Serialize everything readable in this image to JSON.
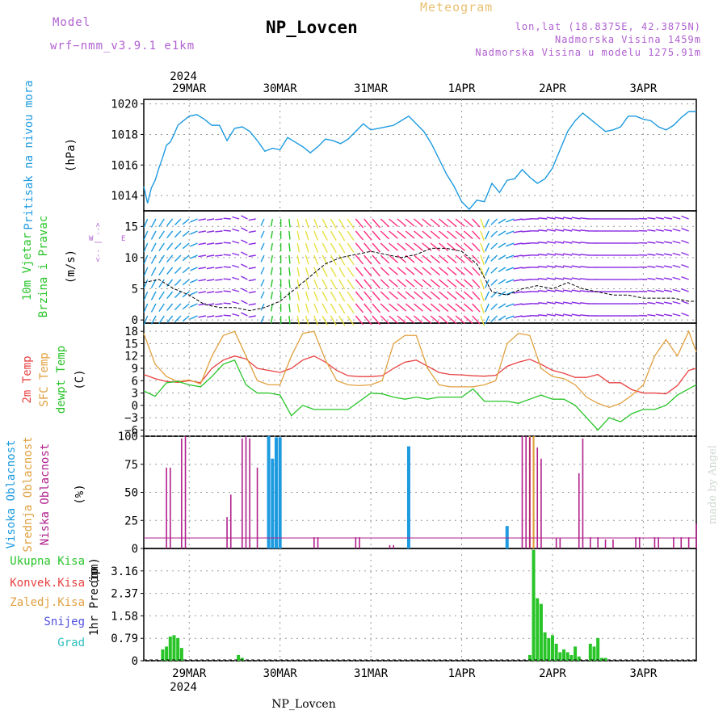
{
  "header": {
    "model_label": "Model",
    "model_name": "wrf−nmm_v3.9.1  e1km",
    "station": "NP_Lovcen",
    "product": "Meteogram",
    "lonlat": "lon,lat (18.8375E, 42.3875N)",
    "elevation": "Nadmorska Visina 1459m",
    "model_elevation": "Nadmorska Visina u modelu 1275.91m",
    "watermark": "made by Angel"
  },
  "time_axis": {
    "year": "2024",
    "days": [
      "29MAR",
      "30MAR",
      "31MAR",
      "1APR",
      "2APR",
      "3APR"
    ],
    "footer": "NP_Lovcen"
  },
  "colors": {
    "pressure": "#1e9be0",
    "wind": "#28c428",
    "temp2m": "#e84040",
    "sfc": "#e0a040",
    "dew": "#28c428",
    "high_cloud": "#1e9be0",
    "mid_cloud": "#e0a040",
    "low_cloud": "#b0208c",
    "precip": "#28c428",
    "snow": "#5050e0",
    "grad": "#30c0c0"
  },
  "chart_data": [
    {
      "type": "line",
      "panel": "pressure",
      "ylabel": "Pritisak na nivou mora",
      "unit": "(hPa)",
      "ylim": [
        1013,
        1020.3
      ],
      "yticks": [
        1014,
        1016,
        1018,
        1020
      ],
      "x_hours": [
        0,
        1,
        2,
        3,
        4,
        5,
        6,
        7,
        8,
        9,
        10,
        12,
        14,
        16,
        18,
        20,
        22,
        24,
        26,
        28,
        30,
        32,
        34,
        36,
        38,
        40,
        42,
        44,
        46,
        48,
        50,
        52,
        54,
        56,
        58,
        60,
        62,
        64,
        66,
        68,
        70,
        72,
        74,
        76,
        78,
        80,
        82,
        84,
        86,
        88,
        90,
        92,
        94,
        96,
        98,
        100,
        102,
        104,
        106,
        108,
        110,
        112,
        114,
        116,
        118,
        120,
        122,
        124,
        126,
        128,
        130,
        132,
        134,
        136,
        138,
        140,
        142,
        144,
        146
      ],
      "values": [
        1014.6,
        1013.5,
        1014.5,
        1015.0,
        1015.8,
        1016.5,
        1017.3,
        1017.5,
        1018.0,
        1018.6,
        1018.8,
        1019.2,
        1019.3,
        1019.0,
        1018.6,
        1018.6,
        1017.6,
        1018.4,
        1018.5,
        1018.2,
        1017.6,
        1016.9,
        1017.1,
        1017.0,
        1017.8,
        1017.5,
        1017.2,
        1016.8,
        1017.2,
        1017.7,
        1017.6,
        1017.4,
        1017.7,
        1018.2,
        1018.7,
        1018.3,
        1018.4,
        1018.5,
        1018.6,
        1018.9,
        1019.2,
        1018.7,
        1018.2,
        1017.4,
        1016.4,
        1015.4,
        1014.6,
        1013.6,
        1013.1,
        1013.7,
        1013.6,
        1014.8,
        1014.2,
        1015.0,
        1015.1,
        1015.7,
        1015.2,
        1014.8,
        1015.1,
        1015.8,
        1017.0,
        1018.2,
        1018.9,
        1019.4,
        1019.0,
        1018.6,
        1018.2,
        1018.3,
        1018.5,
        1019.2,
        1019.2,
        1019.0,
        1018.9,
        1018.5,
        1018.3,
        1018.6,
        1019.1,
        1019.5,
        1019.5
      ]
    },
    {
      "type": "line",
      "panel": "wind",
      "ylabel": "10m Vjetar",
      "ylabel2": "Brzina i Pravac",
      "unit": "(m/s)",
      "compass": [
        "N",
        "S",
        "W",
        "E",
        "<-- | -->"
      ],
      "ylim": [
        -0.5,
        17.5
      ],
      "yticks": [
        0,
        5,
        10,
        15
      ],
      "x_hours": [
        0,
        4,
        8,
        12,
        16,
        20,
        24,
        28,
        32,
        36,
        40,
        44,
        48,
        52,
        56,
        60,
        64,
        68,
        72,
        76,
        80,
        84,
        88,
        92,
        96,
        100,
        104,
        108,
        112,
        116,
        120,
        124,
        128,
        132,
        136,
        140,
        144,
        146
      ],
      "speed": [
        6,
        6.5,
        5,
        4,
        2.5,
        2,
        2,
        1.5,
        2,
        3,
        5,
        7,
        9,
        10,
        10.5,
        11,
        10.5,
        10,
        10.5,
        11.5,
        11.5,
        11,
        9,
        4.5,
        4,
        5,
        5.5,
        5,
        6,
        5,
        4.5,
        4,
        4,
        3.5,
        3.5,
        3.5,
        3,
        3
      ],
      "direction": [
        200,
        210,
        220,
        230,
        260,
        260,
        280,
        300,
        200,
        180,
        170,
        160,
        150,
        150,
        140,
        140,
        130,
        130,
        130,
        130,
        130,
        130,
        140,
        220,
        240,
        260,
        270,
        280,
        280,
        280,
        270,
        270,
        270,
        270,
        280,
        280,
        290,
        290
      ]
    },
    {
      "type": "line",
      "panel": "temperature",
      "ylabel": "2m Temp",
      "ylabel2": "SFC Temp",
      "ylabel3": "dewpt Temp",
      "unit": "(C)",
      "ylim": [
        -7.5,
        20
      ],
      "yticks": [
        -6,
        -3,
        0,
        3,
        6,
        9,
        12,
        15,
        18
      ],
      "x_hours": [
        0,
        3,
        6,
        9,
        12,
        15,
        18,
        21,
        24,
        27,
        30,
        33,
        36,
        39,
        42,
        45,
        48,
        51,
        54,
        57,
        60,
        63,
        66,
        69,
        72,
        75,
        78,
        81,
        84,
        87,
        90,
        93,
        96,
        99,
        102,
        105,
        108,
        111,
        114,
        117,
        120,
        123,
        126,
        129,
        132,
        135,
        138,
        141,
        144,
        146
      ],
      "series": [
        {
          "name": "2m Temp",
          "values": [
            7.5,
            6.5,
            5.8,
            5.6,
            6.0,
            5.5,
            9,
            11,
            12,
            11.3,
            9,
            8.5,
            8,
            9,
            11,
            12,
            10.5,
            8.5,
            7.2,
            7,
            7,
            7.2,
            9,
            10.5,
            11,
            9.5,
            8,
            7.5,
            7.4,
            7.2,
            7.1,
            7.3,
            9.5,
            10.5,
            11.2,
            10,
            8.5,
            7.8,
            6.8,
            6.8,
            7.5,
            5.5,
            5.5,
            3.8,
            3.0,
            3.0,
            2.8,
            4.8,
            8.5,
            9
          ]
        },
        {
          "name": "SFC Temp",
          "values": [
            17.5,
            10,
            7,
            5.8,
            6.2,
            5.2,
            12,
            17,
            18,
            12,
            6.0,
            5.0,
            5.0,
            12,
            17.5,
            18,
            11,
            6,
            5,
            4.8,
            5.0,
            6,
            15,
            17,
            17,
            9,
            5,
            4.5,
            4.5,
            4.5,
            5.0,
            6,
            15,
            17.5,
            17,
            9,
            7,
            6.5,
            5,
            2.0,
            0.5,
            -0.5,
            0.5,
            2.5,
            5,
            12,
            16,
            12,
            18,
            13
          ]
        },
        {
          "name": "dewpt Temp",
          "values": [
            3.5,
            2.2,
            5.5,
            5.8,
            5.0,
            4.5,
            7,
            10,
            11,
            5,
            3,
            3,
            2.5,
            -2.5,
            0,
            -1,
            -1,
            -1,
            -1,
            1,
            3,
            2.8,
            2,
            1.5,
            2,
            1.5,
            2,
            2,
            2,
            4,
            1,
            1,
            1,
            0.5,
            1.5,
            2.5,
            1.5,
            1.5,
            0,
            -3,
            -6,
            -3,
            -4,
            -2,
            -1,
            -1,
            0,
            2.5,
            4,
            5
          ]
        }
      ]
    },
    {
      "type": "bar",
      "panel": "clouds",
      "ylabel": "Visoka Oblacnost",
      "ylabel2": "Srednja Oblacnost",
      "ylabel3": "Niska Oblacnost",
      "unit": "(%)",
      "ylim": [
        0,
        100
      ],
      "yticks": [
        0,
        25,
        50,
        75,
        100
      ],
      "series": [
        {
          "name": "Visoka Oblacnost",
          "x_hours": [
            33,
            34,
            35,
            36,
            70,
            96
          ],
          "values": [
            100,
            80,
            99,
            99,
            91,
            20
          ]
        },
        {
          "name": "Srednja Oblacnost",
          "x_hours": [
            102,
            103
          ],
          "values": [
            100,
            100
          ]
        },
        {
          "name": "Niska Oblacnost",
          "x_hours": [
            6,
            7,
            10,
            11,
            22,
            23,
            26,
            27,
            28,
            30,
            45,
            46,
            56,
            57,
            65,
            66,
            100,
            101,
            102,
            104,
            105,
            109,
            110,
            115,
            116,
            118,
            120,
            122,
            124,
            130,
            131,
            135,
            136,
            140,
            142,
            144,
            146
          ],
          "values": [
            72,
            72,
            98,
            100,
            28,
            48,
            98,
            100,
            98,
            72,
            10,
            10,
            10,
            10,
            3,
            3,
            100,
            100,
            99,
            90,
            80,
            9,
            9,
            67,
            98,
            10,
            10,
            8,
            8,
            10,
            10,
            10,
            10,
            10,
            10,
            10,
            22
          ]
        }
      ]
    },
    {
      "type": "bar",
      "panel": "precipitation",
      "ylabel": "1hr Precip",
      "unit": "(mm)",
      "legend": [
        "Ukupna Kisa",
        "Konvek.Kisa",
        "Zaledj.Kisa",
        "Snijeg",
        "Grad"
      ],
      "ylim": [
        0,
        3.95
      ],
      "yticks": [
        0,
        0.79,
        1.58,
        2.37,
        3.16
      ],
      "series": [
        {
          "name": "Ukupna Kisa",
          "x_hours": [
            5,
            6,
            7,
            8,
            9,
            10,
            25,
            26,
            102,
            103,
            104,
            105,
            106,
            107,
            108,
            109,
            110,
            111,
            112,
            113,
            114,
            115,
            118,
            119,
            120,
            121,
            122
          ],
          "values": [
            0.4,
            0.5,
            0.85,
            0.9,
            0.8,
            0.45,
            0.2,
            0.1,
            0.2,
            3.9,
            2.2,
            2.0,
            1.0,
            0.8,
            0.9,
            0.6,
            0.3,
            0.4,
            0.3,
            0.2,
            0.5,
            0.15,
            0.6,
            0.5,
            0.8,
            0.1,
            0.1
          ]
        }
      ]
    }
  ]
}
